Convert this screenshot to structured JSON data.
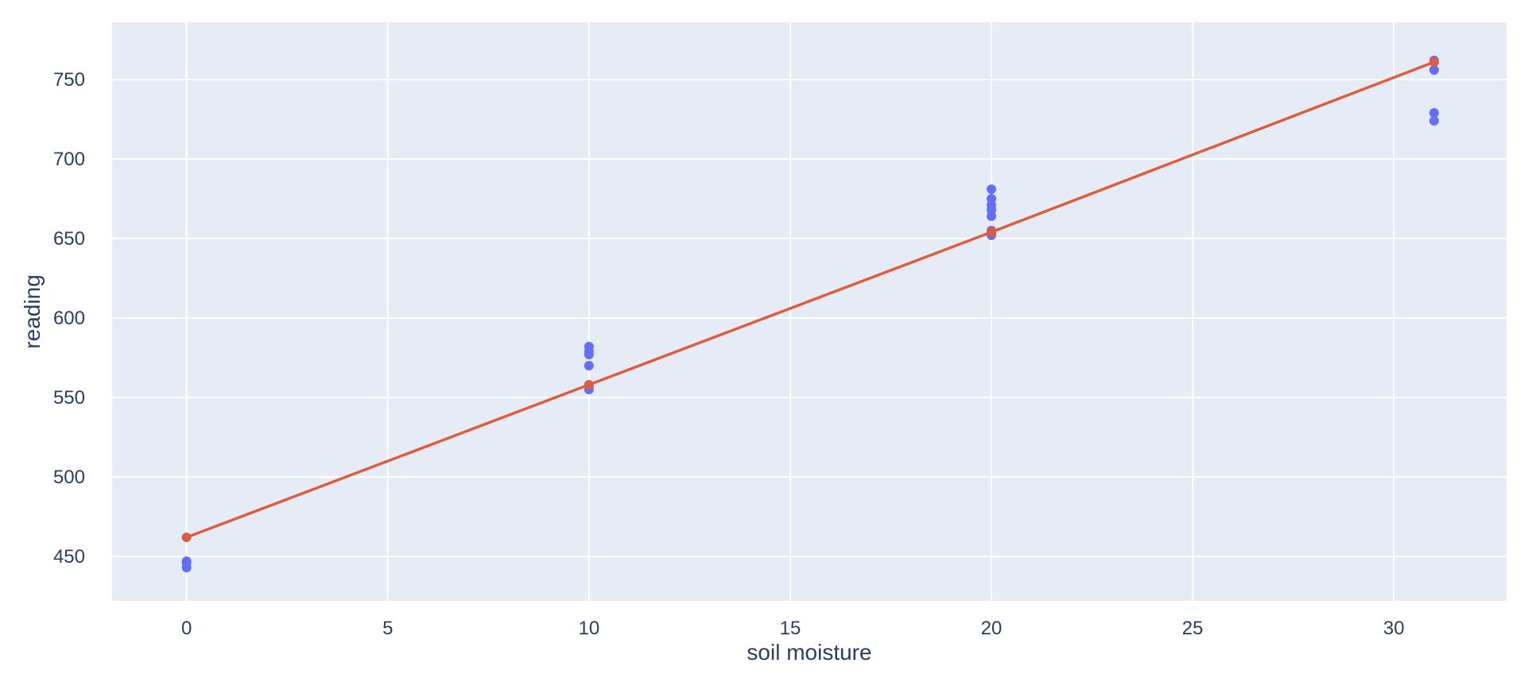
{
  "chart_data": {
    "type": "scatter",
    "xlabel": "soil moisture",
    "ylabel": "reading",
    "xlim": [
      -1.85,
      32.8
    ],
    "ylim": [
      422,
      786
    ],
    "x_ticks": [
      0,
      5,
      10,
      15,
      20,
      25,
      30
    ],
    "y_ticks": [
      450,
      500,
      550,
      600,
      650,
      700,
      750
    ],
    "grid": true,
    "legend": "none",
    "colors": {
      "plot_background": "#e5ecf6",
      "grid": "#ffffff",
      "points": "#636efa",
      "trend": "#dd5e3f"
    },
    "series": [
      {
        "mode": "markers",
        "x": [
          0,
          0,
          0,
          10,
          10,
          10,
          10,
          10,
          10,
          20,
          20,
          20,
          20,
          20,
          20,
          20,
          20,
          31,
          31,
          31,
          31
        ],
        "y": [
          447,
          446,
          443,
          582,
          579,
          577,
          570,
          557,
          555,
          681,
          675,
          671,
          668,
          664,
          655,
          653,
          652,
          762,
          756,
          729,
          724
        ]
      },
      {
        "mode": "lines+markers",
        "x": [
          0,
          10,
          20,
          31
        ],
        "y": [
          462,
          558,
          654,
          761
        ]
      }
    ]
  }
}
